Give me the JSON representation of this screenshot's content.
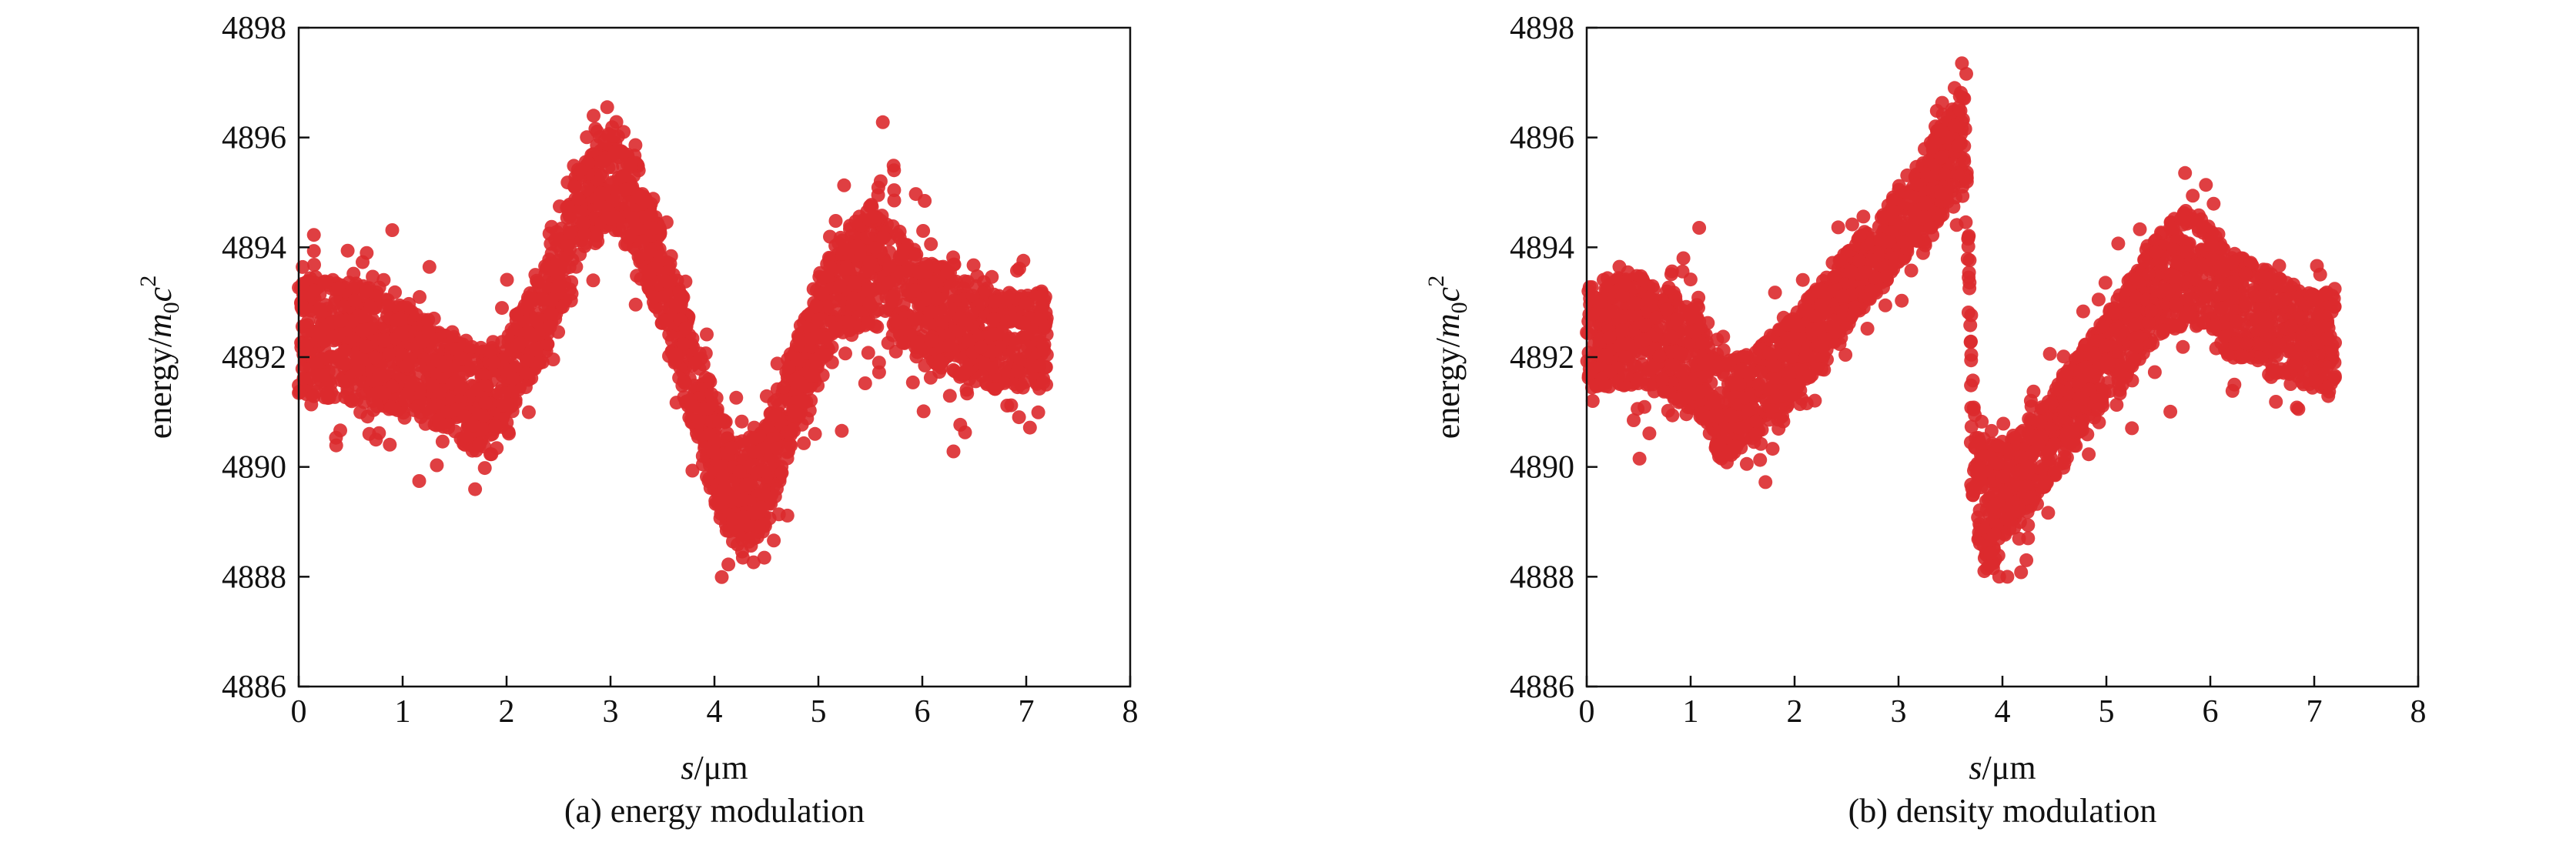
{
  "chart_data": [
    {
      "type": "scatter",
      "caption": "(a) energy modulation",
      "xlabel_var": "s",
      "xlabel_unit": "/μm",
      "ylabel_base": "energy/",
      "ylabel_m": "m",
      "ylabel_sub": "0",
      "ylabel_c": "c",
      "ylabel_sup": "2",
      "xlim": [
        0,
        8
      ],
      "ylim": [
        4886,
        4898
      ],
      "xticks": [
        0,
        1,
        2,
        3,
        4,
        5,
        6,
        7,
        8
      ],
      "yticks": [
        4886,
        4888,
        4890,
        4892,
        4894,
        4896,
        4898
      ],
      "grid": false,
      "color": "#dc2a2e",
      "x_range": [
        0,
        7.2
      ],
      "series": [
        {
          "x": [
            0,
            0.5,
            1.0,
            1.4,
            1.7,
            2.0,
            2.4,
            2.7,
            3.0,
            3.3,
            3.6,
            3.9,
            4.2,
            4.5,
            4.8,
            5.1,
            5.5,
            5.9,
            6.3,
            6.7,
            7.2
          ],
          "y_center": [
            4892.4,
            4892.3,
            4892.0,
            4891.6,
            4891.2,
            4891.6,
            4893.0,
            4894.6,
            4895.5,
            4894.5,
            4892.8,
            4890.9,
            4889.3,
            4889.9,
            4891.6,
            4893.1,
            4893.7,
            4893.1,
            4892.6,
            4892.3,
            4892.3
          ],
          "y_halfwidth": [
            1.1,
            1.1,
            1.0,
            0.9,
            0.95,
            0.8,
            0.8,
            0.9,
            1.1,
            0.9,
            0.85,
            0.95,
            1.15,
            0.95,
            0.85,
            0.9,
            1.1,
            1.0,
            0.9,
            0.9,
            0.9
          ]
        }
      ]
    },
    {
      "type": "scatter",
      "caption": "(b) density modulation",
      "xlabel_var": "s",
      "xlabel_unit": "/μm",
      "ylabel_base": "energy/",
      "ylabel_m": "m",
      "ylabel_sub": "0",
      "ylabel_c": "c",
      "ylabel_sup": "2",
      "xlim": [
        0,
        8
      ],
      "ylim": [
        4886,
        4898
      ],
      "xticks": [
        0,
        1,
        2,
        3,
        4,
        5,
        6,
        7,
        8
      ],
      "yticks": [
        4886,
        4888,
        4890,
        4892,
        4894,
        4896,
        4898
      ],
      "grid": false,
      "color": "#dc2a2e",
      "x_range": [
        0,
        7.2
      ],
      "series": [
        {
          "x": [
            0,
            0.5,
            1.0,
            1.3,
            1.6,
            2.0,
            2.4,
            2.8,
            3.2,
            3.5,
            3.65,
            3.7,
            3.75,
            3.85,
            4.1,
            4.5,
            5.0,
            5.5,
            5.8,
            6.2,
            6.6,
            7.0,
            7.2
          ],
          "y_center": [
            4892.4,
            4892.5,
            4892.0,
            4891.0,
            4891.2,
            4892.0,
            4893.0,
            4893.9,
            4894.9,
            4895.6,
            4896.0,
            4891.0,
            4889.7,
            4889.2,
            4889.7,
            4890.6,
            4892.0,
            4893.3,
            4893.7,
            4893.0,
            4892.6,
            4892.3,
            4892.3
          ],
          "y_halfwidth": [
            1.0,
            1.0,
            0.95,
            0.9,
            0.9,
            0.8,
            0.7,
            0.7,
            0.75,
            0.9,
            1.0,
            1.6,
            1.1,
            1.2,
            0.9,
            0.8,
            0.8,
            0.95,
            1.1,
            1.0,
            0.9,
            0.9,
            0.9
          ]
        }
      ]
    }
  ]
}
